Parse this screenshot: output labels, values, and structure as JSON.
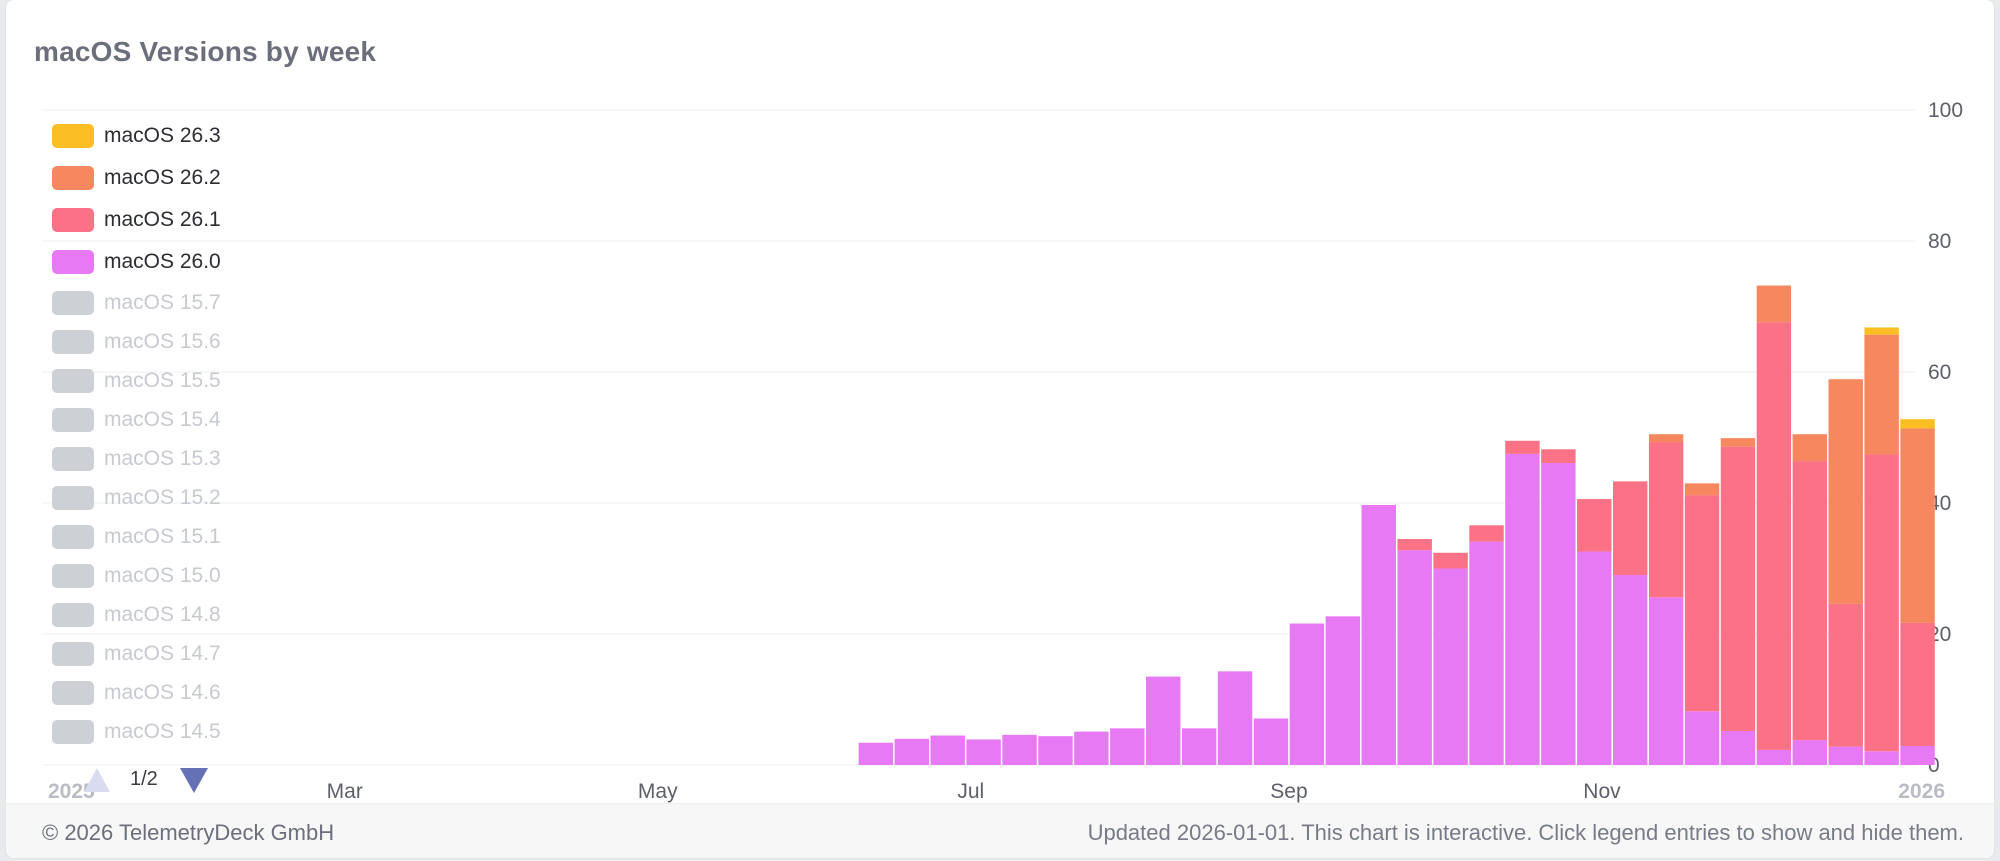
{
  "title": "macOS Versions by week",
  "footer": {
    "copyright": "© 2026 TelemetryDeck GmbH",
    "note": "Updated 2026-01-01. This chart is interactive. Click legend entries to show and hide them."
  },
  "pager": {
    "label": "1/2"
  },
  "colors": {
    "macOS 26.0": "#e879f5",
    "macOS 26.1": "#fb7186",
    "macOS 26.2": "#f6875f",
    "macOS 26.3": "#fbbf24",
    "hidden": "#cdd0d5",
    "grid": "#eeeff1",
    "axis_text": "#5d6069"
  },
  "legend": [
    {
      "label": "macOS 26.3",
      "visible": true
    },
    {
      "label": "macOS 26.2",
      "visible": true
    },
    {
      "label": "macOS 26.1",
      "visible": true
    },
    {
      "label": "macOS 26.0",
      "visible": true
    },
    {
      "label": "macOS 15.7",
      "visible": false
    },
    {
      "label": "macOS 15.6",
      "visible": false
    },
    {
      "label": "macOS 15.5",
      "visible": false
    },
    {
      "label": "macOS 15.4",
      "visible": false
    },
    {
      "label": "macOS 15.3",
      "visible": false
    },
    {
      "label": "macOS 15.2",
      "visible": false
    },
    {
      "label": "macOS 15.1",
      "visible": false
    },
    {
      "label": "macOS 15.0",
      "visible": false
    },
    {
      "label": "macOS 14.8",
      "visible": false
    },
    {
      "label": "macOS 14.7",
      "visible": false
    },
    {
      "label": "macOS 14.6",
      "visible": false
    },
    {
      "label": "macOS 14.5",
      "visible": false
    }
  ],
  "chart_data": {
    "type": "bar",
    "stacked": true,
    "title": "macOS Versions by week",
    "y_axis_position": "right",
    "ylim": [
      0,
      100
    ],
    "y_ticks": [
      0,
      20,
      40,
      60,
      80,
      100
    ],
    "x_domain": [
      "2025-01-01",
      "2026-01-01"
    ],
    "x_ticks": [
      {
        "date": "2025-01-01",
        "label": "2025",
        "bold": true
      },
      {
        "date": "2025-03-01",
        "label": "Mar",
        "bold": false
      },
      {
        "date": "2025-05-01",
        "label": "May",
        "bold": false
      },
      {
        "date": "2025-07-01",
        "label": "Jul",
        "bold": false
      },
      {
        "date": "2025-09-01",
        "label": "Sep",
        "bold": false
      },
      {
        "date": "2025-11-01",
        "label": "Nov",
        "bold": false
      },
      {
        "date": "2026-01-01",
        "label": "2026",
        "bold": true
      }
    ],
    "grid": true,
    "legend_position": "top-left",
    "categories": [
      "2025-06-09",
      "2025-06-16",
      "2025-06-23",
      "2025-06-30",
      "2025-07-07",
      "2025-07-14",
      "2025-07-21",
      "2025-07-28",
      "2025-08-04",
      "2025-08-11",
      "2025-08-18",
      "2025-08-25",
      "2025-09-01",
      "2025-09-08",
      "2025-09-15",
      "2025-09-22",
      "2025-09-29",
      "2025-10-06",
      "2025-10-13",
      "2025-10-20",
      "2025-10-27",
      "2025-11-03",
      "2025-11-10",
      "2025-11-17",
      "2025-11-24",
      "2025-12-01",
      "2025-12-08",
      "2025-12-15",
      "2025-12-22",
      "2025-12-29"
    ],
    "series": [
      {
        "name": "macOS 26.0",
        "values": [
          3.4,
          4.0,
          4.5,
          3.9,
          4.6,
          4.4,
          5.1,
          5.6,
          13.5,
          5.6,
          14.3,
          7.1,
          21.6,
          22.7,
          39.7,
          32.8,
          30.0,
          34.1,
          47.5,
          46.1,
          32.6,
          29.0,
          25.6,
          8.2,
          5.2,
          2.3,
          3.8,
          2.8,
          2.1,
          2.9
        ]
      },
      {
        "name": "macOS 26.1",
        "values": [
          0,
          0,
          0,
          0,
          0,
          0,
          0,
          0,
          0,
          0,
          0,
          0,
          0,
          0,
          0,
          1.7,
          2.4,
          2.5,
          2.0,
          2.1,
          8.0,
          14.3,
          23.7,
          33.0,
          43.4,
          65.3,
          42.6,
          21.8,
          45.3,
          18.8
        ]
      },
      {
        "name": "macOS 26.2",
        "values": [
          0,
          0,
          0,
          0,
          0,
          0,
          0,
          0,
          0,
          0,
          0,
          0,
          0,
          0,
          0,
          0,
          0,
          0,
          0,
          0,
          0,
          0,
          1.2,
          1.8,
          1.3,
          5.6,
          4.1,
          34.3,
          18.3,
          29.7
        ]
      },
      {
        "name": "macOS 26.3",
        "values": [
          0,
          0,
          0,
          0,
          0,
          0,
          0,
          0,
          0,
          0,
          0,
          0,
          0,
          0,
          0,
          0,
          0,
          0,
          0,
          0,
          0,
          0,
          0,
          0,
          0,
          0,
          0,
          0,
          1.1,
          1.4
        ]
      }
    ]
  }
}
